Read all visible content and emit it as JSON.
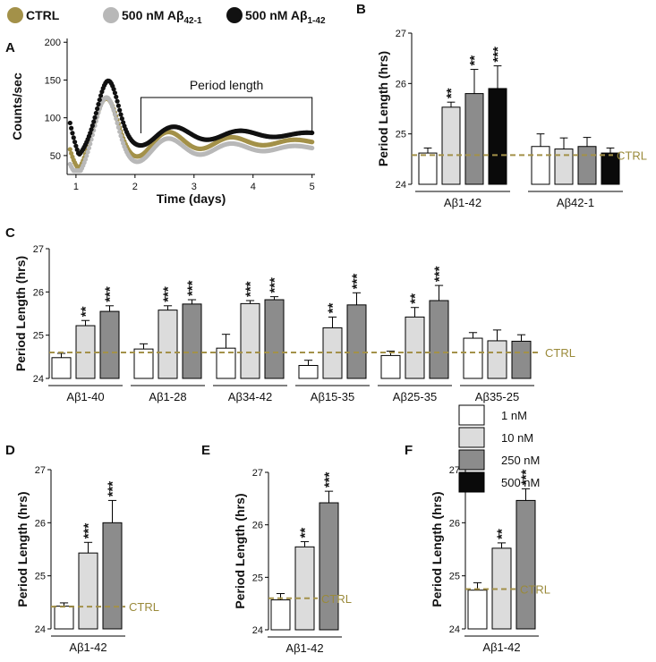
{
  "colors": {
    "ctrl": "#a39149",
    "ctrl_text": "#9a8a3a",
    "a42_1": "#b8b8b8",
    "a1_42": "#111111",
    "nm1": "#ffffff",
    "nm10": "#dcdcdc",
    "nm250": "#8c8c8c",
    "nm500": "#0a0a0a"
  },
  "top_legend": {
    "ctrl": "CTRL",
    "a42_1_prefix": "500 nM Aβ",
    "a42_1_sub": "42-1",
    "a1_42_prefix": "500 nM Aβ",
    "a1_42_sub": "1-42"
  },
  "conc_legend": [
    "1 nM",
    "10 nM",
    "250 nM",
    "500 nM"
  ],
  "chart_data": [
    {
      "panel": "A",
      "type": "line",
      "ylabel": "Counts/sec",
      "xlabel": "Time (days)",
      "xlim": [
        0.85,
        5.05
      ],
      "ylim": [
        25,
        205
      ],
      "xticks": [
        1,
        2,
        3,
        4,
        5
      ],
      "yticks": [
        50,
        100,
        150,
        200
      ],
      "annotation": "Period length",
      "annotation_span": [
        2.1,
        5.0
      ],
      "series": [
        {
          "name": "CTRL",
          "color_key": "ctrl",
          "base": 68,
          "amp": 40,
          "decay": 0.7,
          "period": 1.07,
          "phase": 1.52,
          "start": 170,
          "sharp": 150
        },
        {
          "name": "500 nM Aβ42-1",
          "color_key": "a42_1",
          "base": 60,
          "amp": 38,
          "decay": 0.7,
          "period": 1.07,
          "phase": 1.52,
          "start": 130,
          "sharp": 160
        },
        {
          "name": "500 nM Aβ1-42",
          "color_key": "a1_42",
          "base": 78,
          "amp": 30,
          "decay": 0.65,
          "period": 1.13,
          "phase": 1.55,
          "start": 205,
          "sharp": 190
        }
      ]
    },
    {
      "panel": "B",
      "type": "bar",
      "ylabel": "Period Length (hrs)",
      "ylim": [
        24,
        27
      ],
      "yticks": [
        24,
        25,
        26,
        27
      ],
      "ctrl_line": 24.58,
      "ctrl_label": "CTRL",
      "groups": [
        {
          "name": "Aβ1-42",
          "bars": [
            {
              "conc": "1 nM",
              "value": 24.62,
              "err": 0.1,
              "sig": ""
            },
            {
              "conc": "10 nM",
              "value": 25.53,
              "err": 0.1,
              "sig": "**"
            },
            {
              "conc": "250 nM",
              "value": 25.8,
              "err": 0.48,
              "sig": "**"
            },
            {
              "conc": "500 nM",
              "value": 25.9,
              "err": 0.45,
              "sig": "***"
            }
          ]
        },
        {
          "name": "Aβ42-1",
          "bars": [
            {
              "conc": "1 nM",
              "value": 24.75,
              "err": 0.25,
              "sig": ""
            },
            {
              "conc": "10 nM",
              "value": 24.7,
              "err": 0.22,
              "sig": ""
            },
            {
              "conc": "250 nM",
              "value": 24.75,
              "err": 0.18,
              "sig": ""
            },
            {
              "conc": "500 nM",
              "value": 24.62,
              "err": 0.1,
              "sig": ""
            }
          ]
        }
      ]
    },
    {
      "panel": "C",
      "type": "bar",
      "ylabel": "Period Length (hrs)",
      "ylim": [
        24,
        27
      ],
      "yticks": [
        24,
        25,
        26,
        27
      ],
      "ctrl_line": 24.6,
      "ctrl_label": "CTRL",
      "groups": [
        {
          "name": "Aβ1-40",
          "bars": [
            {
              "conc": "1 nM",
              "value": 24.48,
              "err": 0.1,
              "sig": ""
            },
            {
              "conc": "10 nM",
              "value": 25.22,
              "err": 0.12,
              "sig": "**"
            },
            {
              "conc": "250 nM",
              "value": 25.55,
              "err": 0.13,
              "sig": "***"
            }
          ]
        },
        {
          "name": "Aβ1-28",
          "bars": [
            {
              "conc": "1 nM",
              "value": 24.68,
              "err": 0.12,
              "sig": ""
            },
            {
              "conc": "10 nM",
              "value": 25.58,
              "err": 0.1,
              "sig": "***"
            },
            {
              "conc": "250 nM",
              "value": 25.72,
              "err": 0.1,
              "sig": "***"
            }
          ]
        },
        {
          "name": "Aβ34-42",
          "bars": [
            {
              "conc": "1 nM",
              "value": 24.7,
              "err": 0.32,
              "sig": ""
            },
            {
              "conc": "10 nM",
              "value": 25.73,
              "err": 0.07,
              "sig": "***"
            },
            {
              "conc": "250 nM",
              "value": 25.82,
              "err": 0.07,
              "sig": "***"
            }
          ]
        },
        {
          "name": "Aβ15-35",
          "bars": [
            {
              "conc": "1 nM",
              "value": 24.3,
              "err": 0.12,
              "sig": ""
            },
            {
              "conc": "10 nM",
              "value": 25.17,
              "err": 0.25,
              "sig": "**"
            },
            {
              "conc": "250 nM",
              "value": 25.7,
              "err": 0.28,
              "sig": "***"
            }
          ]
        },
        {
          "name": "Aβ25-35",
          "bars": [
            {
              "conc": "1 nM",
              "value": 24.53,
              "err": 0.1,
              "sig": ""
            },
            {
              "conc": "10 nM",
              "value": 25.42,
              "err": 0.22,
              "sig": "**"
            },
            {
              "conc": "250 nM",
              "value": 25.8,
              "err": 0.35,
              "sig": "***"
            }
          ]
        },
        {
          "name": "Aβ35-25",
          "bars": [
            {
              "conc": "1 nM",
              "value": 24.93,
              "err": 0.13,
              "sig": ""
            },
            {
              "conc": "10 nM",
              "value": 24.87,
              "err": 0.25,
              "sig": ""
            },
            {
              "conc": "250 nM",
              "value": 24.86,
              "err": 0.15,
              "sig": ""
            }
          ]
        }
      ]
    },
    {
      "panel": "D",
      "type": "bar",
      "ylabel": "Period Length (hrs)",
      "ylim": [
        24,
        27
      ],
      "yticks": [
        24,
        25,
        26,
        27
      ],
      "ctrl_line": 24.42,
      "ctrl_label": "CTRL",
      "groups": [
        {
          "name": "Aβ1-42",
          "bars": [
            {
              "conc": "1 nM",
              "value": 24.43,
              "err": 0.06,
              "sig": ""
            },
            {
              "conc": "10 nM",
              "value": 25.43,
              "err": 0.2,
              "sig": "***"
            },
            {
              "conc": "250 nM",
              "value": 26.0,
              "err": 0.42,
              "sig": "***"
            }
          ]
        }
      ]
    },
    {
      "panel": "E",
      "type": "bar",
      "ylabel": "Period Length (hrs)",
      "ylim": [
        24,
        27
      ],
      "yticks": [
        24,
        25,
        26,
        27
      ],
      "ctrl_line": 24.6,
      "ctrl_label": "CTRL",
      "groups": [
        {
          "name": "Aβ1-42",
          "bars": [
            {
              "conc": "1 nM",
              "value": 24.57,
              "err": 0.12,
              "sig": ""
            },
            {
              "conc": "10 nM",
              "value": 25.58,
              "err": 0.1,
              "sig": "**"
            },
            {
              "conc": "250 nM",
              "value": 26.42,
              "err": 0.22,
              "sig": "***"
            }
          ]
        }
      ]
    },
    {
      "panel": "F",
      "type": "bar",
      "ylabel": "Period Length (hrs)",
      "ylim": [
        24,
        27
      ],
      "yticks": [
        24,
        25,
        26,
        27
      ],
      "ctrl_line": 24.75,
      "ctrl_label": "CTRL",
      "groups": [
        {
          "name": "Aβ1-42",
          "bars": [
            {
              "conc": "1 nM",
              "value": 24.73,
              "err": 0.14,
              "sig": ""
            },
            {
              "conc": "10 nM",
              "value": 25.52,
              "err": 0.1,
              "sig": "**"
            },
            {
              "conc": "250 nM",
              "value": 26.42,
              "err": 0.22,
              "sig": "***"
            }
          ]
        }
      ]
    }
  ]
}
